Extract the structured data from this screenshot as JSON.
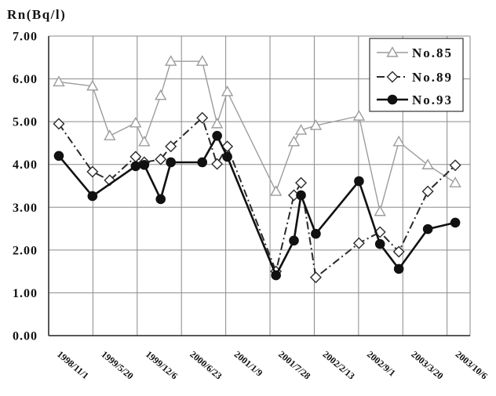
{
  "chart_data": {
    "type": "line",
    "ylabel": "Rn(Bq/l)",
    "ylim": [
      0,
      7
    ],
    "yticks": [
      "0.00",
      "1.00",
      "2.00",
      "3.00",
      "4.00",
      "5.00",
      "6.00",
      "7.00"
    ],
    "xlim": [
      "1998/11/1",
      "2004/1/18"
    ],
    "xticks": [
      "1998/11/1",
      "1999/5/20",
      "1999/12/6",
      "2000/6/23",
      "2001/1/9",
      "2001/7/28",
      "2002/2/13",
      "2002/9/1",
      "2003/3/20",
      "2003/10/6"
    ],
    "grid": true,
    "legend": "top-right",
    "series": [
      {
        "name": "No.85",
        "marker": "triangle",
        "line_style": "solid",
        "color": "#9c9c9c",
        "x": [
          "1998/12/17",
          "1999/5/18",
          "1999/8/4",
          "1999/11/29",
          "2000/1/7",
          "2000/3/21",
          "2000/5/6",
          "2000/9/25",
          "2000/12/1",
          "2001/1/16",
          "2001/8/24",
          "2001/11/13",
          "2001/12/15",
          "2002/2/20",
          "2002/9/3",
          "2002/12/7",
          "2003/3/2",
          "2003/7/11",
          "2003/11/12"
        ],
        "values": [
          5.93,
          5.83,
          4.67,
          4.97,
          4.53,
          5.61,
          6.41,
          6.41,
          4.95,
          5.7,
          3.37,
          4.53,
          4.8,
          4.91,
          5.13,
          2.9,
          4.53,
          3.99,
          3.57
        ]
      },
      {
        "name": "No.89",
        "marker": "diamond",
        "line_style": "dash-dot",
        "color": "#2a2a2a",
        "x": [
          "1998/12/17",
          "1999/5/18",
          "1999/8/4",
          "1999/11/29",
          "2000/1/7",
          "2000/3/21",
          "2000/5/6",
          "2000/9/25",
          "2000/12/1",
          "2001/1/16",
          "2001/8/24",
          "2001/11/13",
          "2001/12/15",
          "2002/2/20",
          "2002/9/3",
          "2002/12/7",
          "2003/3/2",
          "2003/7/11",
          "2003/11/12"
        ],
        "values": [
          4.95,
          3.83,
          3.63,
          4.18,
          4.05,
          4.12,
          4.42,
          5.09,
          4.01,
          4.42,
          1.5,
          3.28,
          3.57,
          1.36,
          2.16,
          2.42,
          1.96,
          3.37,
          3.98
        ]
      },
      {
        "name": "No.93",
        "marker": "circle",
        "line_style": "solid",
        "color": "#111111",
        "x": [
          "1998/12/17",
          "1999/5/18",
          "1999/11/29",
          "2000/1/7",
          "2000/3/21",
          "2000/5/6",
          "2000/9/25",
          "2000/12/1",
          "2001/1/16",
          "2001/8/24",
          "2001/11/13",
          "2001/12/15",
          "2002/2/20",
          "2002/9/3",
          "2002/12/7",
          "2003/3/2",
          "2003/7/11",
          "2003/11/12"
        ],
        "values": [
          4.2,
          3.26,
          3.96,
          3.99,
          3.19,
          4.05,
          4.05,
          4.67,
          4.18,
          1.41,
          2.22,
          3.28,
          2.38,
          3.61,
          2.14,
          1.56,
          2.49,
          2.64
        ]
      }
    ]
  }
}
